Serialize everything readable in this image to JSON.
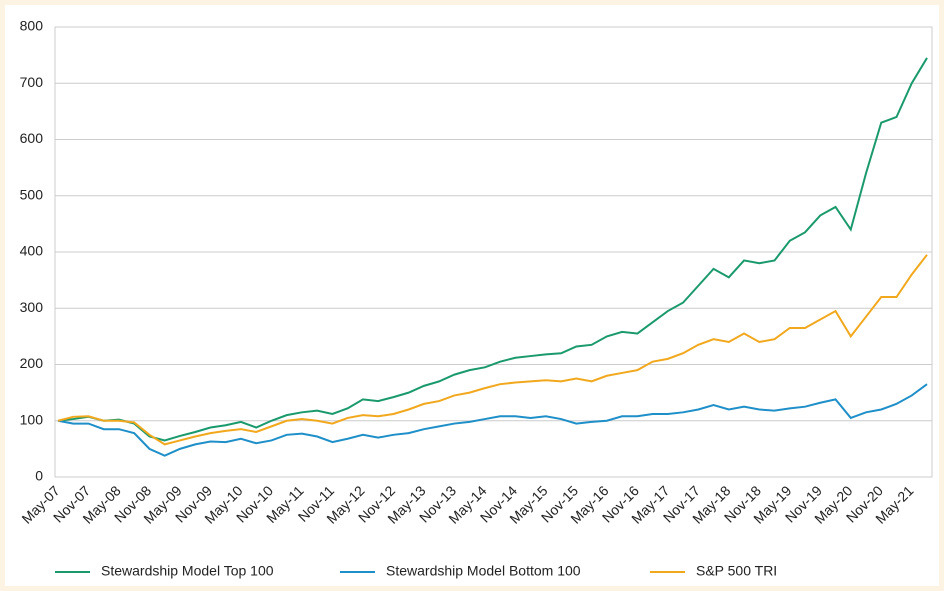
{
  "chart_data": {
    "type": "line",
    "categories": [
      "May-07",
      null,
      "Nov-07",
      null,
      "May-08",
      null,
      "Nov-08",
      null,
      "May-09",
      null,
      "Nov-09",
      null,
      "May-10",
      null,
      "Nov-10",
      null,
      "May-11",
      null,
      "Nov-11",
      null,
      "May-12",
      null,
      "Nov-12",
      null,
      "May-13",
      null,
      "Nov-13",
      null,
      "May-14",
      null,
      "Nov-14",
      null,
      "May-15",
      null,
      "Nov-15",
      null,
      "May-16",
      null,
      "Nov-16",
      null,
      "May-17",
      null,
      "Nov-17",
      null,
      "May-18",
      null,
      "Nov-18",
      null,
      "May-19",
      null,
      "Nov-19",
      null,
      "May-20",
      null,
      "Nov-20",
      null,
      "May-21",
      null
    ],
    "series": [
      {
        "name": "Stewardship Model Top 100",
        "color": "#1a9a6c",
        "values": [
          100,
          103,
          107,
          100,
          102,
          95,
          72,
          65,
          73,
          80,
          88,
          92,
          98,
          88,
          100,
          110,
          115,
          118,
          112,
          122,
          138,
          135,
          142,
          150,
          162,
          170,
          182,
          190,
          195,
          205,
          212,
          215,
          218,
          220,
          232,
          235,
          250,
          258,
          255,
          275,
          295,
          310,
          340,
          370,
          355,
          385,
          380,
          385,
          420,
          435,
          465,
          480,
          440,
          540,
          630,
          640,
          700,
          745
        ]
      },
      {
        "name": "Stewardship Model Bottom 100",
        "color": "#1e8fc8",
        "values": [
          100,
          95,
          95,
          85,
          85,
          78,
          50,
          38,
          50,
          58,
          63,
          62,
          68,
          60,
          65,
          75,
          77,
          72,
          62,
          68,
          75,
          70,
          75,
          78,
          85,
          90,
          95,
          98,
          103,
          108,
          108,
          105,
          108,
          103,
          95,
          98,
          100,
          108,
          108,
          112,
          112,
          115,
          120,
          128,
          120,
          125,
          120,
          118,
          122,
          125,
          132,
          138,
          105,
          115,
          120,
          130,
          145,
          165
        ]
      },
      {
        "name": "S&P 500 TRI",
        "color": "#f2a81d",
        "values": [
          100,
          107,
          108,
          100,
          100,
          97,
          75,
          58,
          65,
          72,
          78,
          82,
          85,
          80,
          90,
          100,
          103,
          100,
          95,
          105,
          110,
          108,
          112,
          120,
          130,
          135,
          145,
          150,
          158,
          165,
          168,
          170,
          172,
          170,
          175,
          170,
          180,
          185,
          190,
          205,
          210,
          220,
          235,
          245,
          240,
          255,
          240,
          245,
          265,
          265,
          280,
          295,
          250,
          285,
          320,
          320,
          360,
          395
        ]
      }
    ],
    "ylim": [
      0,
      800
    ],
    "yticks": [
      0,
      100,
      200,
      300,
      400,
      500,
      600,
      700,
      800
    ],
    "grid": true
  }
}
